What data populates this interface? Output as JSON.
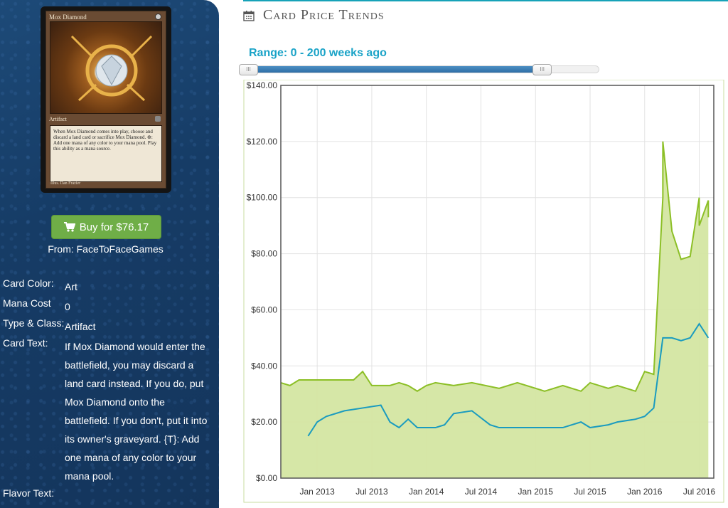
{
  "card": {
    "name": "Mox Diamond",
    "type_line": "Artifact",
    "card_rules_text": "When Mox Diamond comes into play, choose and discard a land card or sacrifice Mox Diamond. ⊕: Add one mana of any color to your mana pool. Play this ability as a mana source.",
    "artist": "Illus. Dan Frazier"
  },
  "buy": {
    "label": "Buy for $76.17",
    "from": "From: FaceToFaceGames",
    "color": "#6fae47"
  },
  "attributes": {
    "color_label": "Card Color:",
    "color_value": "Art",
    "mana_label": "Mana Cost",
    "mana_value": "0",
    "type_label": "Type & Class:",
    "type_value": "Artifact",
    "text_label": "Card Text:",
    "text_value": "If Mox Diamond would enter the battlefield, you may discard a land card instead. If you do, put Mox Diamond onto the battlefield. If you don't, put it into its owner's graveyard. {T}: Add one mana of any color to your mana pool.",
    "flavor_label": "Flavor Text:",
    "flavor_value": ""
  },
  "section": {
    "title": "Card Price Trends",
    "icon": "calendar-icon"
  },
  "range": {
    "label": "Range: 0 - 200 weeks ago",
    "min_weeks": 0,
    "max_weeks": 200,
    "slider_fill_fraction": 0.84
  },
  "colors": {
    "accent": "#17a2b8",
    "green_series": "#8cbf26",
    "green_fill": "#d4e6a2",
    "blue_series": "#1a9bbf"
  },
  "chart_data": {
    "type": "area",
    "ylim": [
      0,
      140
    ],
    "y_ticks": [
      "$0.00",
      "$20.00",
      "$40.00",
      "$60.00",
      "$80.00",
      "$100.00",
      "$120.00",
      "$140.00"
    ],
    "x_ticks": [
      "Jan 2013",
      "Jul 2013",
      "Jan 2014",
      "Jul 2014",
      "Jan 2015",
      "Jul 2015",
      "Jan 2016",
      "Jul 2016"
    ],
    "x_range": [
      "2012-09",
      "2016-08"
    ],
    "series": [
      {
        "style": "area",
        "points": [
          [
            "2012-09",
            34
          ],
          [
            "2012-10",
            33
          ],
          [
            "2012-11",
            35
          ],
          [
            "2013-01",
            35
          ],
          [
            "2013-05",
            35
          ],
          [
            "2013-06",
            38
          ],
          [
            "2013-07",
            33
          ],
          [
            "2013-09",
            33
          ],
          [
            "2013-10",
            34
          ],
          [
            "2013-11",
            33
          ],
          [
            "2013-12",
            31
          ],
          [
            "2014-01",
            33
          ],
          [
            "2014-02",
            34
          ],
          [
            "2014-04",
            33
          ],
          [
            "2014-06",
            34
          ],
          [
            "2014-09",
            32
          ],
          [
            "2014-11",
            34
          ],
          [
            "2015-02",
            31
          ],
          [
            "2015-04",
            33
          ],
          [
            "2015-06",
            31
          ],
          [
            "2015-07",
            34
          ],
          [
            "2015-09",
            32
          ],
          [
            "2015-10",
            33
          ],
          [
            "2015-12",
            31
          ],
          [
            "2016-01",
            38
          ],
          [
            "2016-02",
            37
          ],
          [
            "2016-03",
            100
          ],
          [
            "2016-03",
            120
          ],
          [
            "2016-04",
            88
          ],
          [
            "2016-05",
            78
          ],
          [
            "2016-06",
            79
          ],
          [
            "2016-07",
            100
          ],
          [
            "2016-07",
            90
          ],
          [
            "2016-08",
            99
          ],
          [
            "2016-08",
            93
          ]
        ]
      },
      {
        "style": "line",
        "points": [
          [
            "2012-12",
            15
          ],
          [
            "2013-01",
            20
          ],
          [
            "2013-02",
            22
          ],
          [
            "2013-04",
            24
          ],
          [
            "2013-06",
            25
          ],
          [
            "2013-08",
            26
          ],
          [
            "2013-09",
            20
          ],
          [
            "2013-10",
            18
          ],
          [
            "2013-11",
            21
          ],
          [
            "2013-12",
            18
          ],
          [
            "2014-02",
            18
          ],
          [
            "2014-03",
            19
          ],
          [
            "2014-04",
            23
          ],
          [
            "2014-06",
            24
          ],
          [
            "2014-08",
            19
          ],
          [
            "2014-09",
            18
          ],
          [
            "2014-11",
            18
          ],
          [
            "2015-02",
            18
          ],
          [
            "2015-04",
            18
          ],
          [
            "2015-06",
            20
          ],
          [
            "2015-07",
            18
          ],
          [
            "2015-09",
            19
          ],
          [
            "2015-10",
            20
          ],
          [
            "2015-12",
            21
          ],
          [
            "2016-01",
            22
          ],
          [
            "2016-02",
            25
          ],
          [
            "2016-03",
            50
          ],
          [
            "2016-04",
            50
          ],
          [
            "2016-05",
            49
          ],
          [
            "2016-06",
            50
          ],
          [
            "2016-07",
            55
          ],
          [
            "2016-08",
            50
          ]
        ]
      }
    ]
  }
}
